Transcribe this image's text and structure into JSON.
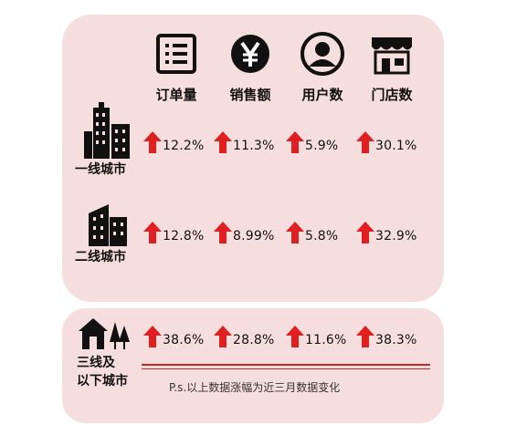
{
  "columns": [
    "订单量",
    "销售额",
    "用户数",
    "门店数"
  ],
  "rows": [
    {
      "label": "一线城市",
      "values": [
        "12.2%",
        "11.3%",
        "5.9%",
        "30.1%"
      ]
    },
    {
      "label": "二线城市",
      "values": [
        "12.8%",
        "8.99%",
        "5.8%",
        "32.9%"
      ]
    },
    {
      "label_line1": "三线及",
      "label_line2": "以下城市",
      "values": [
        "38.6%",
        "28.8%",
        "11.6%",
        "38.3%"
      ]
    }
  ],
  "icons": [
    "order-list-icon",
    "yen-icon",
    "user-icon",
    "store-icon",
    "skyscraper-icon",
    "building-icon",
    "house-trees-icon",
    "up-arrow-icon"
  ],
  "note": "P.s.以上数据涨幅为近三月数据变化",
  "colors": {
    "card": "#f7dede",
    "arrow": "#e02020",
    "line": "#c62828"
  }
}
